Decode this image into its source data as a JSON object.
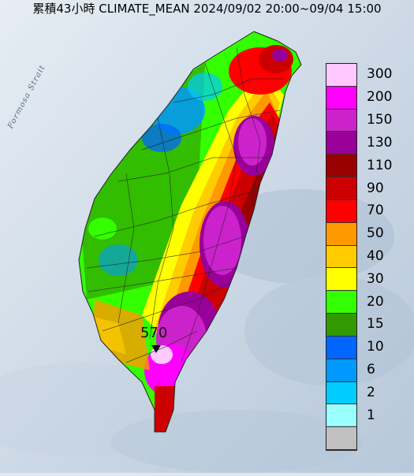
{
  "title": "累積43小時 CLIMATE_MEAN 2024/09/02 20:00~09/04 15:00",
  "strait_label": "Formosa Strait",
  "max_value_label": "570",
  "legend": [
    {
      "label": "300",
      "color": "#ffc8ff"
    },
    {
      "label": "200",
      "color": "#ff00ff"
    },
    {
      "label": "150",
      "color": "#cc22cc"
    },
    {
      "label": "130",
      "color": "#990099"
    },
    {
      "label": "110",
      "color": "#990000"
    },
    {
      "label": "90",
      "color": "#cc0000"
    },
    {
      "label": "70",
      "color": "#ff0000"
    },
    {
      "label": "50",
      "color": "#ff9900"
    },
    {
      "label": "40",
      "color": "#ffcc00"
    },
    {
      "label": "30",
      "color": "#ffff00"
    },
    {
      "label": "20",
      "color": "#33ff00"
    },
    {
      "label": "15",
      "color": "#339900"
    },
    {
      "label": "10",
      "color": "#0066ff"
    },
    {
      "label": "6",
      "color": "#0099ff"
    },
    {
      "label": "2",
      "color": "#00ccff"
    },
    {
      "label": "1",
      "color": "#99ffff"
    },
    {
      "label": "",
      "color": "#c0c0c0"
    }
  ]
}
